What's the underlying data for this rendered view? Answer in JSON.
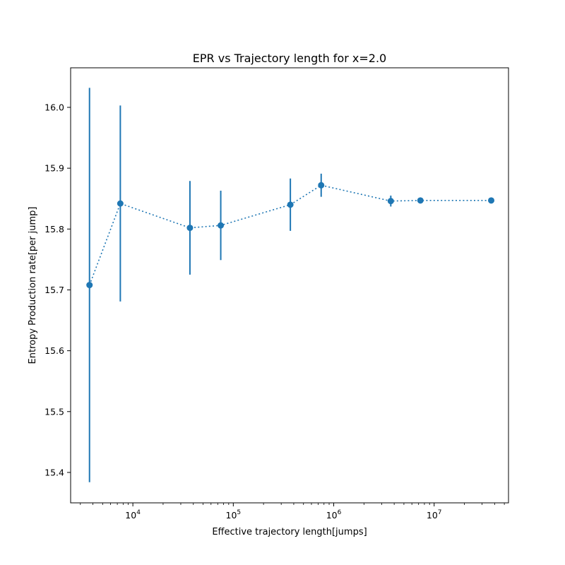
{
  "chart_data": {
    "type": "scatter",
    "title": "EPR vs Trajectory length for x=2.0",
    "xlabel": "Effective trajectory length[jumps]",
    "ylabel": "Entropy Production rate[per jump]",
    "xscale": "log",
    "xlim": [
      2400,
      55000000
    ],
    "ylim": [
      15.35,
      16.065
    ],
    "x_ticks": [
      {
        "value": 10000,
        "base": "10",
        "exp": "4"
      },
      {
        "value": 100000,
        "base": "10",
        "exp": "5"
      },
      {
        "value": 1000000,
        "base": "10",
        "exp": "6"
      },
      {
        "value": 10000000,
        "base": "10",
        "exp": "7"
      }
    ],
    "y_ticks": [
      "15.4",
      "15.5",
      "15.6",
      "15.7",
      "15.8",
      "15.9",
      "16.0"
    ],
    "grid": false,
    "color": "#1f77b4",
    "line_style": "dotted",
    "series": [
      {
        "x": [
          3700,
          7500,
          37000,
          75000,
          370000,
          750000,
          3700000,
          7300000,
          37000000
        ],
        "y": [
          15.708,
          15.842,
          15.802,
          15.806,
          15.84,
          15.872,
          15.846,
          15.847,
          15.847
        ],
        "yerr": [
          0.324,
          0.161,
          0.077,
          0.057,
          0.043,
          0.019,
          0.009,
          0.004,
          0.002
        ]
      }
    ]
  }
}
